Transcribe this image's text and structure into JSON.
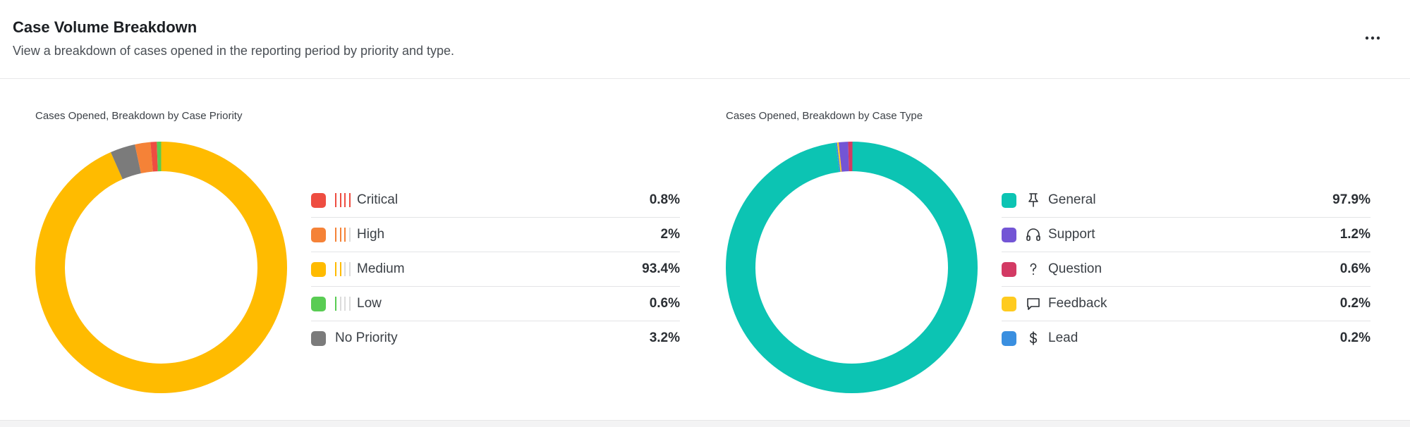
{
  "header": {
    "title": "Case Volume Breakdown",
    "subtitle": "View a breakdown of cases opened in the reporting period by priority and type.",
    "more_icon": "more-horizontal-icon"
  },
  "chart_data": [
    {
      "type": "pie",
      "variant": "donut",
      "title": "Cases Opened, Breakdown by Case Priority",
      "legend_position": "right",
      "categories": [
        "Critical",
        "High",
        "Medium",
        "Low",
        "No Priority"
      ],
      "values": [
        0.8,
        2,
        93.4,
        0.6,
        3.2
      ],
      "value_labels": [
        "0.8%",
        "2%",
        "93.4%",
        "0.6%",
        "3.2%"
      ],
      "unit": "%",
      "colors": [
        "#ee4d41",
        "#f58237",
        "#ffbb00",
        "#59cc53",
        "#7b7b7b"
      ],
      "priority_bars": [
        4,
        3,
        2,
        1,
        0
      ],
      "inactive_bar_color": "#dcdcdc",
      "ring_order": [
        "Medium",
        "No Priority",
        "High",
        "Critical",
        "Low"
      ]
    },
    {
      "type": "pie",
      "variant": "donut",
      "title": "Cases Opened, Breakdown by Case Type",
      "legend_position": "right",
      "categories": [
        "General",
        "Support",
        "Question",
        "Feedback",
        "Lead"
      ],
      "values": [
        97.9,
        1.2,
        0.6,
        0.2,
        0.2
      ],
      "value_labels": [
        "97.9%",
        "1.2%",
        "0.6%",
        "0.2%",
        "0.2%"
      ],
      "unit": "%",
      "colors": [
        "#0cc4b3",
        "#7355d5",
        "#d33a64",
        "#ffcb1f",
        "#3a8fe0"
      ],
      "icons": [
        "pin-icon",
        "headset-icon",
        "question-mark-icon",
        "speech-bubble-icon",
        "dollar-icon"
      ],
      "ring_order": [
        "General",
        "Lead",
        "Feedback",
        "Support",
        "Question"
      ]
    }
  ]
}
